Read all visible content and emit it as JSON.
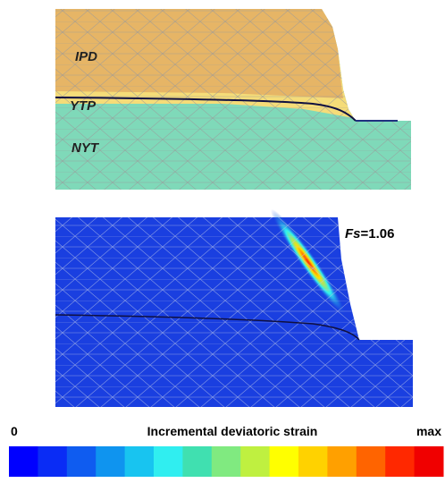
{
  "top_panel": {
    "layers": [
      "IPD",
      "YTP",
      "NYT"
    ]
  },
  "bottom_panel": {
    "factor_symbol": "Fs",
    "factor_value": "=1.06"
  },
  "colorbar": {
    "min_label": "0",
    "title": "Incremental deviatoric strain",
    "max_label": "max",
    "colors": [
      "#0000ff",
      "#0a2cf5",
      "#0f5cf0",
      "#0f94ef",
      "#18c4f0",
      "#30eef0",
      "#40e0b0",
      "#80ea80",
      "#bff040",
      "#ffff00",
      "#ffd200",
      "#ffa000",
      "#ff6400",
      "#ff2800",
      "#f00000"
    ]
  }
}
